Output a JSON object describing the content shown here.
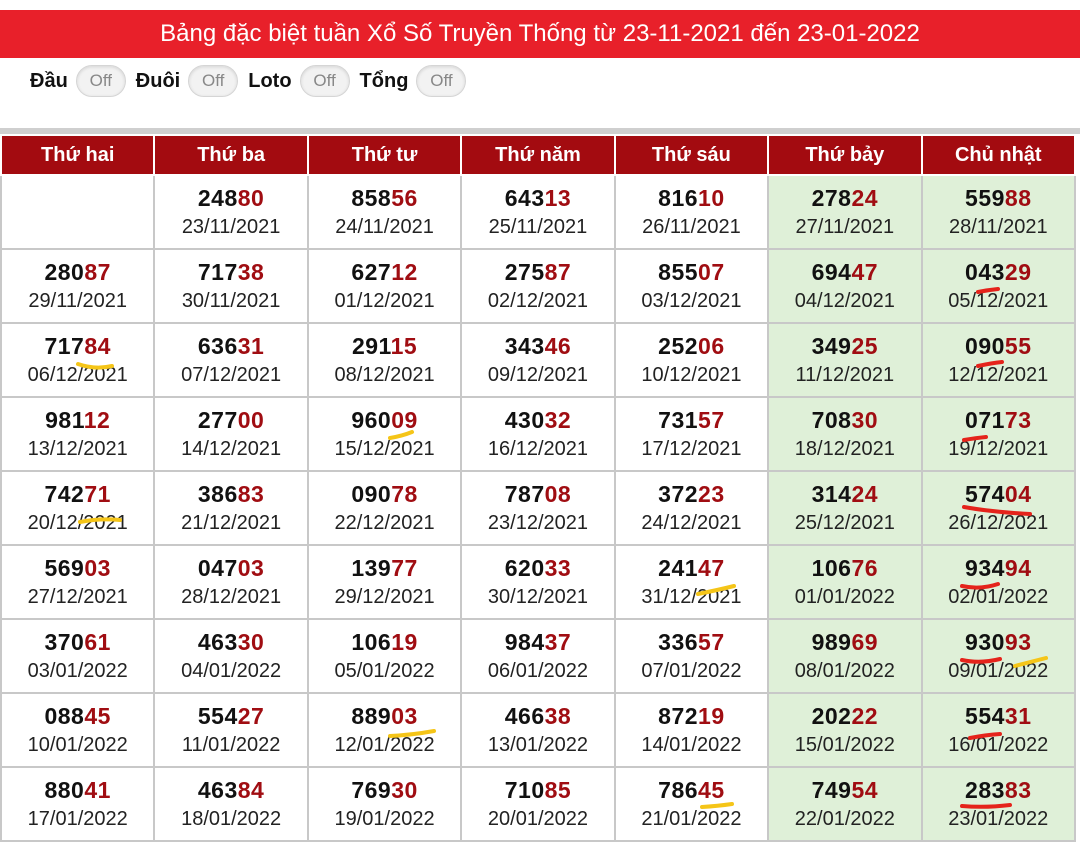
{
  "title": "Bảng đặc biệt tuần Xổ Số Truyền Thống từ 23-11-2021 đến 23-01-2022",
  "toggles": [
    {
      "label": "Đầu",
      "state": "Off"
    },
    {
      "label": "Đuôi",
      "state": "Off"
    },
    {
      "label": "Loto",
      "state": "Off"
    },
    {
      "label": "Tổng",
      "state": "Off"
    }
  ],
  "columns": [
    "Thứ hai",
    "Thứ ba",
    "Thứ tư",
    "Thứ năm",
    "Thứ sáu",
    "Thứ bảy",
    "Chủ nhật"
  ],
  "colors": {
    "banner": "#e8202a",
    "header": "#a30b10",
    "tail_digits": "#a00d12",
    "weekend_bg": "#dff0d8",
    "red_marker": "#e5231b",
    "yellow_marker": "#f5c518"
  },
  "rows": [
    [
      null,
      {
        "head": "248",
        "tail": "80",
        "date": "23/11/2021"
      },
      {
        "head": "858",
        "tail": "56",
        "date": "24/11/2021"
      },
      {
        "head": "643",
        "tail": "13",
        "date": "25/11/2021"
      },
      {
        "head": "816",
        "tail": "10",
        "date": "26/11/2021"
      },
      {
        "head": "278",
        "tail": "24",
        "date": "27/11/2021"
      },
      {
        "head": "559",
        "tail": "88",
        "date": "28/11/2021"
      }
    ],
    [
      {
        "head": "280",
        "tail": "87",
        "date": "29/11/2021"
      },
      {
        "head": "717",
        "tail": "38",
        "date": "30/11/2021"
      },
      {
        "head": "627",
        "tail": "12",
        "date": "01/12/2021"
      },
      {
        "head": "275",
        "tail": "87",
        "date": "02/12/2021"
      },
      {
        "head": "855",
        "tail": "07",
        "date": "03/12/2021"
      },
      {
        "head": "694",
        "tail": "47",
        "date": "04/12/2021"
      },
      {
        "head": "043",
        "tail": "29",
        "date": "05/12/2021"
      }
    ],
    [
      {
        "head": "717",
        "tail": "84",
        "date": "06/12/2021"
      },
      {
        "head": "636",
        "tail": "31",
        "date": "07/12/2021"
      },
      {
        "head": "291",
        "tail": "15",
        "date": "08/12/2021"
      },
      {
        "head": "343",
        "tail": "46",
        "date": "09/12/2021"
      },
      {
        "head": "252",
        "tail": "06",
        "date": "10/12/2021"
      },
      {
        "head": "349",
        "tail": "25",
        "date": "11/12/2021"
      },
      {
        "head": "090",
        "tail": "55",
        "date": "12/12/2021"
      }
    ],
    [
      {
        "head": "981",
        "tail": "12",
        "date": "13/12/2021"
      },
      {
        "head": "277",
        "tail": "00",
        "date": "14/12/2021"
      },
      {
        "head": "960",
        "tail": "09",
        "date": "15/12/2021"
      },
      {
        "head": "430",
        "tail": "32",
        "date": "16/12/2021"
      },
      {
        "head": "731",
        "tail": "57",
        "date": "17/12/2021"
      },
      {
        "head": "708",
        "tail": "30",
        "date": "18/12/2021"
      },
      {
        "head": "071",
        "tail": "73",
        "date": "19/12/2021"
      }
    ],
    [
      {
        "head": "742",
        "tail": "71",
        "date": "20/12/2021"
      },
      {
        "head": "386",
        "tail": "83",
        "date": "21/12/2021"
      },
      {
        "head": "090",
        "tail": "78",
        "date": "22/12/2021"
      },
      {
        "head": "787",
        "tail": "08",
        "date": "23/12/2021"
      },
      {
        "head": "372",
        "tail": "23",
        "date": "24/12/2021"
      },
      {
        "head": "314",
        "tail": "24",
        "date": "25/12/2021"
      },
      {
        "head": "574",
        "tail": "04",
        "date": "26/12/2021"
      }
    ],
    [
      {
        "head": "569",
        "tail": "03",
        "date": "27/12/2021"
      },
      {
        "head": "047",
        "tail": "03",
        "date": "28/12/2021"
      },
      {
        "head": "139",
        "tail": "77",
        "date": "29/12/2021"
      },
      {
        "head": "620",
        "tail": "33",
        "date": "30/12/2021"
      },
      {
        "head": "241",
        "tail": "47",
        "date": "31/12/2021"
      },
      {
        "head": "106",
        "tail": "76",
        "date": "01/01/2022"
      },
      {
        "head": "934",
        "tail": "94",
        "date": "02/01/2022"
      }
    ],
    [
      {
        "head": "370",
        "tail": "61",
        "date": "03/01/2022"
      },
      {
        "head": "463",
        "tail": "30",
        "date": "04/01/2022"
      },
      {
        "head": "106",
        "tail": "19",
        "date": "05/01/2022"
      },
      {
        "head": "984",
        "tail": "37",
        "date": "06/01/2022"
      },
      {
        "head": "336",
        "tail": "57",
        "date": "07/01/2022"
      },
      {
        "head": "989",
        "tail": "69",
        "date": "08/01/2022"
      },
      {
        "head": "930",
        "tail": "93",
        "date": "09/01/2022"
      }
    ],
    [
      {
        "head": "088",
        "tail": "45",
        "date": "10/01/2022"
      },
      {
        "head": "554",
        "tail": "27",
        "date": "11/01/2022"
      },
      {
        "head": "889",
        "tail": "03",
        "date": "12/01/2022"
      },
      {
        "head": "466",
        "tail": "38",
        "date": "13/01/2022"
      },
      {
        "head": "872",
        "tail": "19",
        "date": "14/01/2022"
      },
      {
        "head": "202",
        "tail": "22",
        "date": "15/01/2022"
      },
      {
        "head": "554",
        "tail": "31",
        "date": "16/01/2022"
      }
    ],
    [
      {
        "head": "880",
        "tail": "41",
        "date": "17/01/2022"
      },
      {
        "head": "463",
        "tail": "84",
        "date": "18/01/2022"
      },
      {
        "head": "769",
        "tail": "30",
        "date": "19/01/2022"
      },
      {
        "head": "710",
        "tail": "85",
        "date": "20/01/2022"
      },
      {
        "head": "786",
        "tail": "45",
        "date": "21/01/2022"
      },
      {
        "head": "749",
        "tail": "54",
        "date": "22/01/2022"
      },
      {
        "head": "283",
        "tail": "83",
        "date": "23/01/2022"
      }
    ]
  ]
}
